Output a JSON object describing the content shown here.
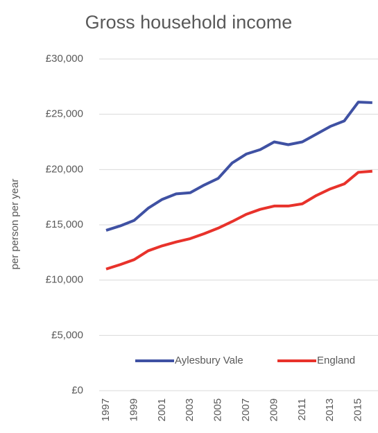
{
  "chart_data": {
    "type": "line",
    "title": "Gross household income",
    "y_label": "per person per year",
    "categories": [
      "1997",
      null,
      "1999",
      null,
      "2001",
      null,
      "2003",
      null,
      "2005",
      null,
      "2007",
      null,
      "2009",
      null,
      "2011",
      null,
      "2013",
      null,
      "2015",
      null
    ],
    "series": [
      {
        "name": "Aylesbury Vale",
        "color": "#3f51a3",
        "values": [
          14500,
          14900,
          15400,
          16500,
          17300,
          17800,
          17900,
          18600,
          19200,
          20600,
          21400,
          21800,
          22500,
          22250,
          22500,
          23200,
          23900,
          24400,
          26100,
          26050
        ]
      },
      {
        "name": "England",
        "color": "#e8322b",
        "values": [
          11000,
          11400,
          11850,
          12650,
          13100,
          13450,
          13750,
          14200,
          14700,
          15300,
          15950,
          16400,
          16700,
          16700,
          16900,
          17650,
          18250,
          18700,
          19750,
          19850
        ]
      }
    ],
    "ylim": [
      0,
      30000
    ],
    "yticks": [
      {
        "value": 0,
        "label": "£0"
      },
      {
        "value": 5000,
        "label": "£5,000"
      },
      {
        "value": 10000,
        "label": "£10,000"
      },
      {
        "value": 15000,
        "label": "£15,000"
      },
      {
        "value": 20000,
        "label": "£20,000"
      },
      {
        "value": 25000,
        "label": "£25,000"
      },
      {
        "value": 30000,
        "label": "£30,000"
      }
    ],
    "grid": true,
    "legend": "bottom"
  }
}
